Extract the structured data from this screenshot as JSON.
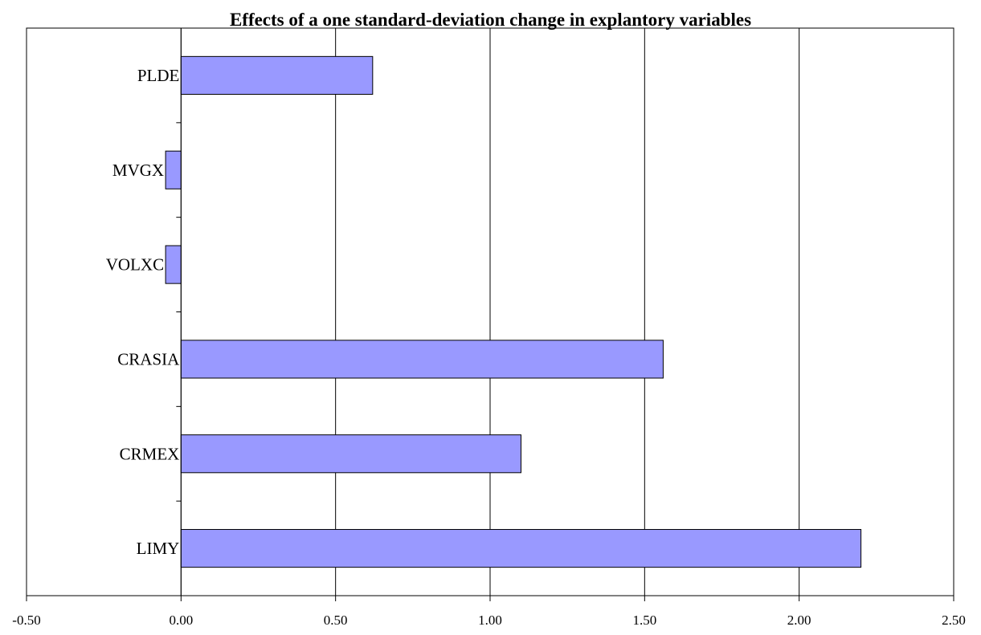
{
  "chart_data": {
    "type": "bar",
    "orientation": "horizontal",
    "title": "Effects of a one standard-deviation change in explantory variables",
    "xlabel": "",
    "ylabel": "",
    "categories": [
      "LIMY",
      "CRMEX",
      "CRASIA",
      "VOLXC",
      "MVGX",
      "PLDE"
    ],
    "values": [
      2.2,
      1.1,
      1.56,
      -0.05,
      -0.05,
      0.62
    ],
    "xlim": [
      -0.5,
      2.5
    ],
    "xticks": [
      -0.5,
      0.0,
      0.5,
      1.0,
      1.5,
      2.0,
      2.5
    ],
    "xtick_labels": [
      "-0.50",
      "0.00",
      "0.50",
      "1.00",
      "1.50",
      "2.00",
      "2.50"
    ],
    "grid": "vertical",
    "legend": "none",
    "bar_color": "#9999ff",
    "bar_edge_color": "#000000"
  }
}
